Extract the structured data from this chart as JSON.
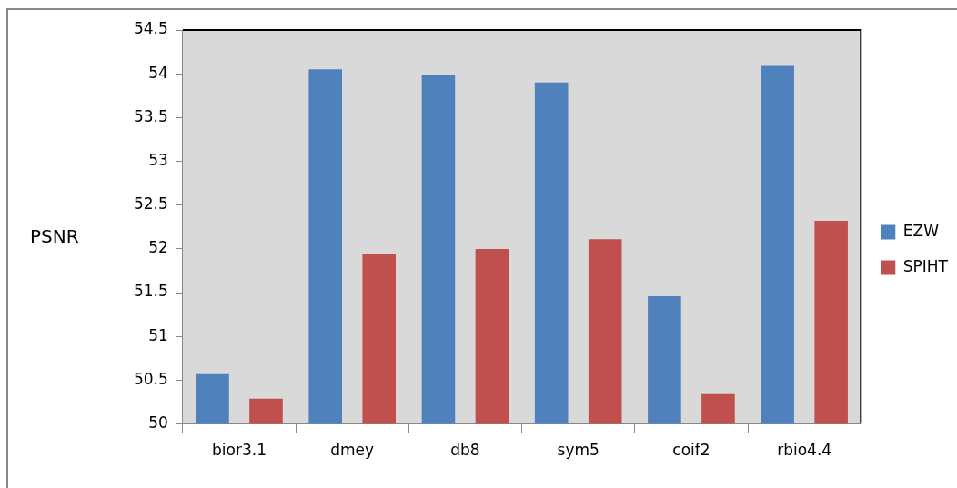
{
  "chart_data": {
    "type": "bar",
    "ylabel": "PSNR",
    "categories": [
      "bior3.1",
      "dmey",
      "db8",
      "sym5",
      "coif2",
      "rbio4.4"
    ],
    "series": [
      {
        "name": "EZW",
        "color": "#4f81bd",
        "values": [
          50.57,
          54.05,
          53.98,
          53.9,
          51.46,
          54.09
        ]
      },
      {
        "name": "SPIHT",
        "color": "#c0504d",
        "values": [
          50.29,
          51.94,
          52.0,
          52.11,
          50.34,
          52.32
        ]
      }
    ],
    "ylim": [
      50,
      54.5
    ],
    "yticks": [
      50,
      50.5,
      51,
      51.5,
      52,
      52.5,
      53,
      53.5,
      54,
      54.5
    ],
    "grid": false,
    "legend": "right"
  }
}
